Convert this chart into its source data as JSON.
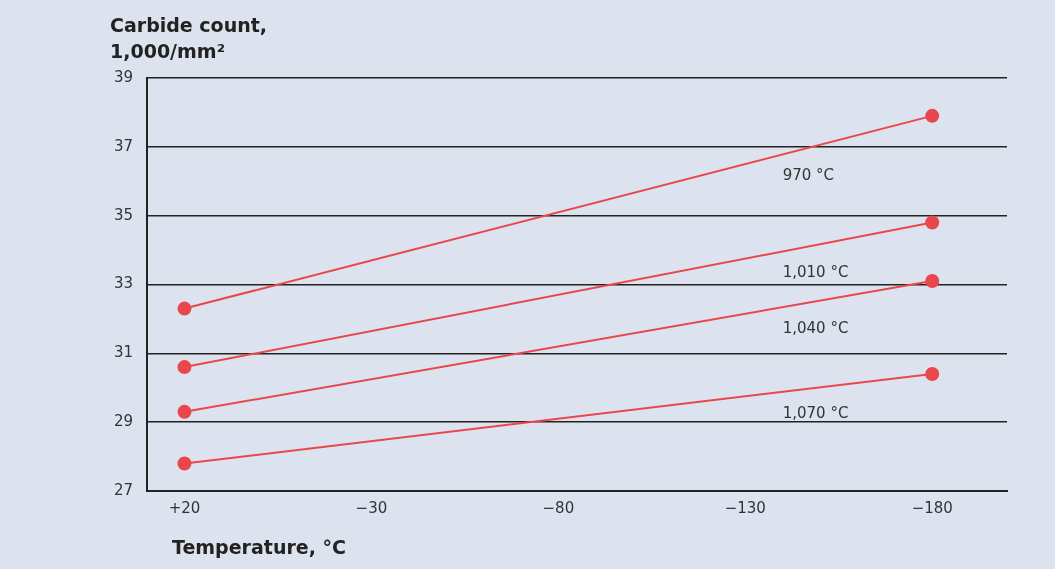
{
  "chart_data": {
    "type": "line",
    "ylabel": "Carbide count, 1,000/mm²",
    "xlabel": "Temperature, °C",
    "x": [
      20,
      -180
    ],
    "series": [
      {
        "name": "970 °C",
        "color": "#e8474c",
        "values": [
          32.3,
          37.9
        ]
      },
      {
        "name": "1,010 °C",
        "color": "#e8474c",
        "values": [
          30.6,
          34.8
        ]
      },
      {
        "name": "1,040 °C",
        "color": "#e8474c",
        "values": [
          29.3,
          33.1
        ]
      },
      {
        "name": "1,070 °C",
        "color": "#e8474c",
        "values": [
          27.8,
          30.4
        ]
      }
    ],
    "xlim": [
      30,
      -200
    ],
    "xticks": [
      {
        "value": 20,
        "label": "+20"
      },
      {
        "value": -30,
        "label": "−30"
      },
      {
        "value": -80,
        "label": "−80"
      },
      {
        "value": -130,
        "label": "−130"
      },
      {
        "value": -180,
        "label": "−180"
      }
    ],
    "ylim": [
      27,
      39
    ],
    "yticks": [
      27,
      29,
      31,
      33,
      35,
      37,
      39
    ],
    "grid": "y",
    "legend": false,
    "marker": "circle",
    "line_style": "solid"
  }
}
